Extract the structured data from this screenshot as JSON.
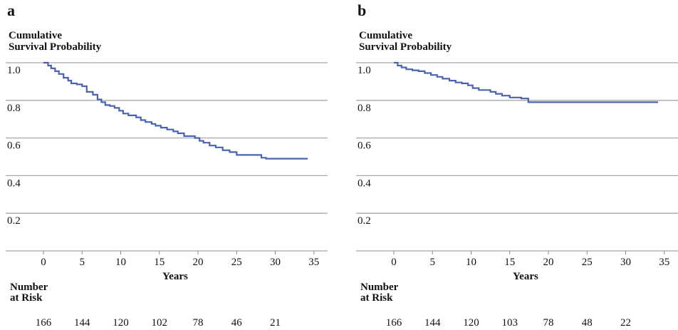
{
  "chart_data": [
    {
      "type": "line",
      "panel_label": "a",
      "ylabel": [
        "Cumulative",
        "Survival Probability"
      ],
      "xlabel": "Years",
      "xlim": [
        -5,
        37
      ],
      "ylim": [
        0.0,
        1.0
      ],
      "x_ticks": [
        0,
        5,
        10,
        15,
        20,
        25,
        30,
        35
      ],
      "y_ticks": [
        "1.0",
        "0.8",
        "0.6",
        "0.4",
        "0.2"
      ],
      "y_tick_values": [
        1.0,
        0.8,
        0.6,
        0.4,
        0.2
      ],
      "grid": "horizontal",
      "series_color": "#4a63b0",
      "risk_title": [
        "Number",
        "at Risk"
      ],
      "risk_x": [
        0,
        5,
        10,
        15,
        20,
        25,
        30
      ],
      "risk_counts": [
        "166",
        "144",
        "120",
        "102",
        "78",
        "46",
        "21"
      ],
      "series": [
        {
          "x": [
            0,
            0.6,
            1.0,
            1.5,
            2.0,
            2.6,
            3.2,
            3.6,
            4.3,
            5.0,
            5.6,
            6.4,
            7.0,
            7.5,
            8.0,
            8.6,
            9.2,
            9.8,
            10.3,
            11.0,
            12.0,
            12.6,
            13.2,
            14.0,
            14.5,
            15.2,
            16.0,
            16.8,
            17.4,
            18.2,
            19.6,
            20.2,
            20.7,
            21.5,
            22.3,
            23.2,
            24.1,
            25.0,
            26.0,
            27.0,
            28.2,
            28.8,
            30.0,
            34.2
          ],
          "y": [
            1.0,
            0.985,
            0.97,
            0.955,
            0.94,
            0.92,
            0.905,
            0.89,
            0.885,
            0.875,
            0.845,
            0.83,
            0.805,
            0.79,
            0.775,
            0.77,
            0.76,
            0.745,
            0.73,
            0.72,
            0.71,
            0.695,
            0.685,
            0.675,
            0.665,
            0.655,
            0.645,
            0.635,
            0.625,
            0.61,
            0.6,
            0.585,
            0.575,
            0.56,
            0.55,
            0.535,
            0.525,
            0.51,
            0.51,
            0.51,
            0.495,
            0.49,
            0.49,
            0.49
          ]
        }
      ]
    },
    {
      "type": "line",
      "panel_label": "b",
      "ylabel": [
        "Cumulative",
        "Survival Probability"
      ],
      "xlabel": "Years",
      "xlim": [
        -5,
        37
      ],
      "ylim": [
        0.0,
        1.0
      ],
      "x_ticks": [
        0,
        5,
        10,
        15,
        20,
        25,
        30,
        35
      ],
      "y_ticks": [
        "1.0",
        "0.8",
        "0.6",
        "0.4",
        "0.2"
      ],
      "y_tick_values": [
        1.0,
        0.8,
        0.6,
        0.4,
        0.2
      ],
      "grid": "horizontal",
      "series_color": "#4a63b0",
      "risk_title": [
        "Number",
        "at Risk"
      ],
      "risk_x": [
        0,
        5,
        10,
        15,
        20,
        25,
        30
      ],
      "risk_counts": [
        "166",
        "144",
        "120",
        "103",
        "78",
        "48",
        "22"
      ],
      "series": [
        {
          "x": [
            0,
            0.5,
            1.0,
            1.6,
            2.4,
            3.2,
            4.0,
            4.8,
            5.6,
            6.3,
            7.2,
            8.0,
            8.8,
            9.6,
            10.2,
            11.0,
            12.5,
            13.2,
            14.0,
            15.0,
            16.5,
            17.4,
            34.2
          ],
          "y": [
            1.0,
            0.985,
            0.975,
            0.965,
            0.96,
            0.955,
            0.945,
            0.935,
            0.925,
            0.915,
            0.905,
            0.895,
            0.89,
            0.88,
            0.865,
            0.855,
            0.845,
            0.835,
            0.825,
            0.815,
            0.81,
            0.79,
            0.79
          ]
        }
      ]
    }
  ]
}
